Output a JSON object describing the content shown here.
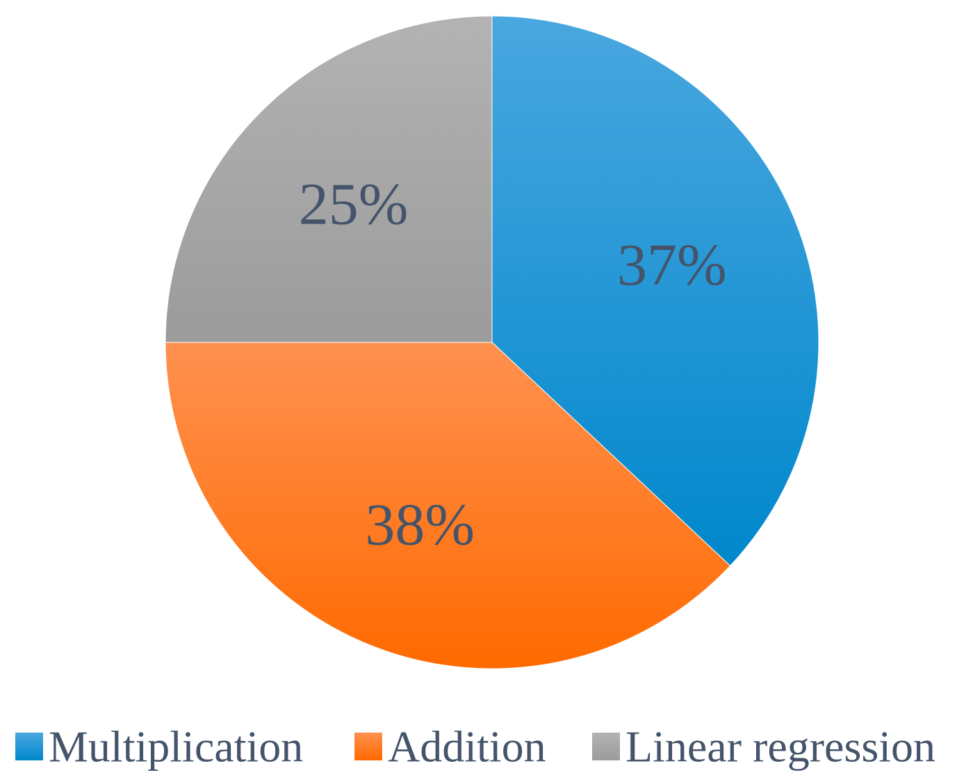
{
  "chart_data": {
    "type": "pie",
    "categories": [
      "Multiplication",
      "Addition",
      "Linear regression"
    ],
    "values": [
      37,
      38,
      25
    ],
    "value_labels": [
      "37%",
      "38%",
      "25%"
    ],
    "colors": [
      "#1e9ad9",
      "#ff7f26",
      "#a6a6a6"
    ],
    "color_gradients": [
      [
        "#4aa7df",
        "#0087cc"
      ],
      [
        "#ff9150",
        "#ff6a00"
      ],
      [
        "#b3b3b3",
        "#9b9b9b"
      ]
    ],
    "legend_position": "bottom",
    "start_angle_deg": 0,
    "direction": "clockwise"
  }
}
